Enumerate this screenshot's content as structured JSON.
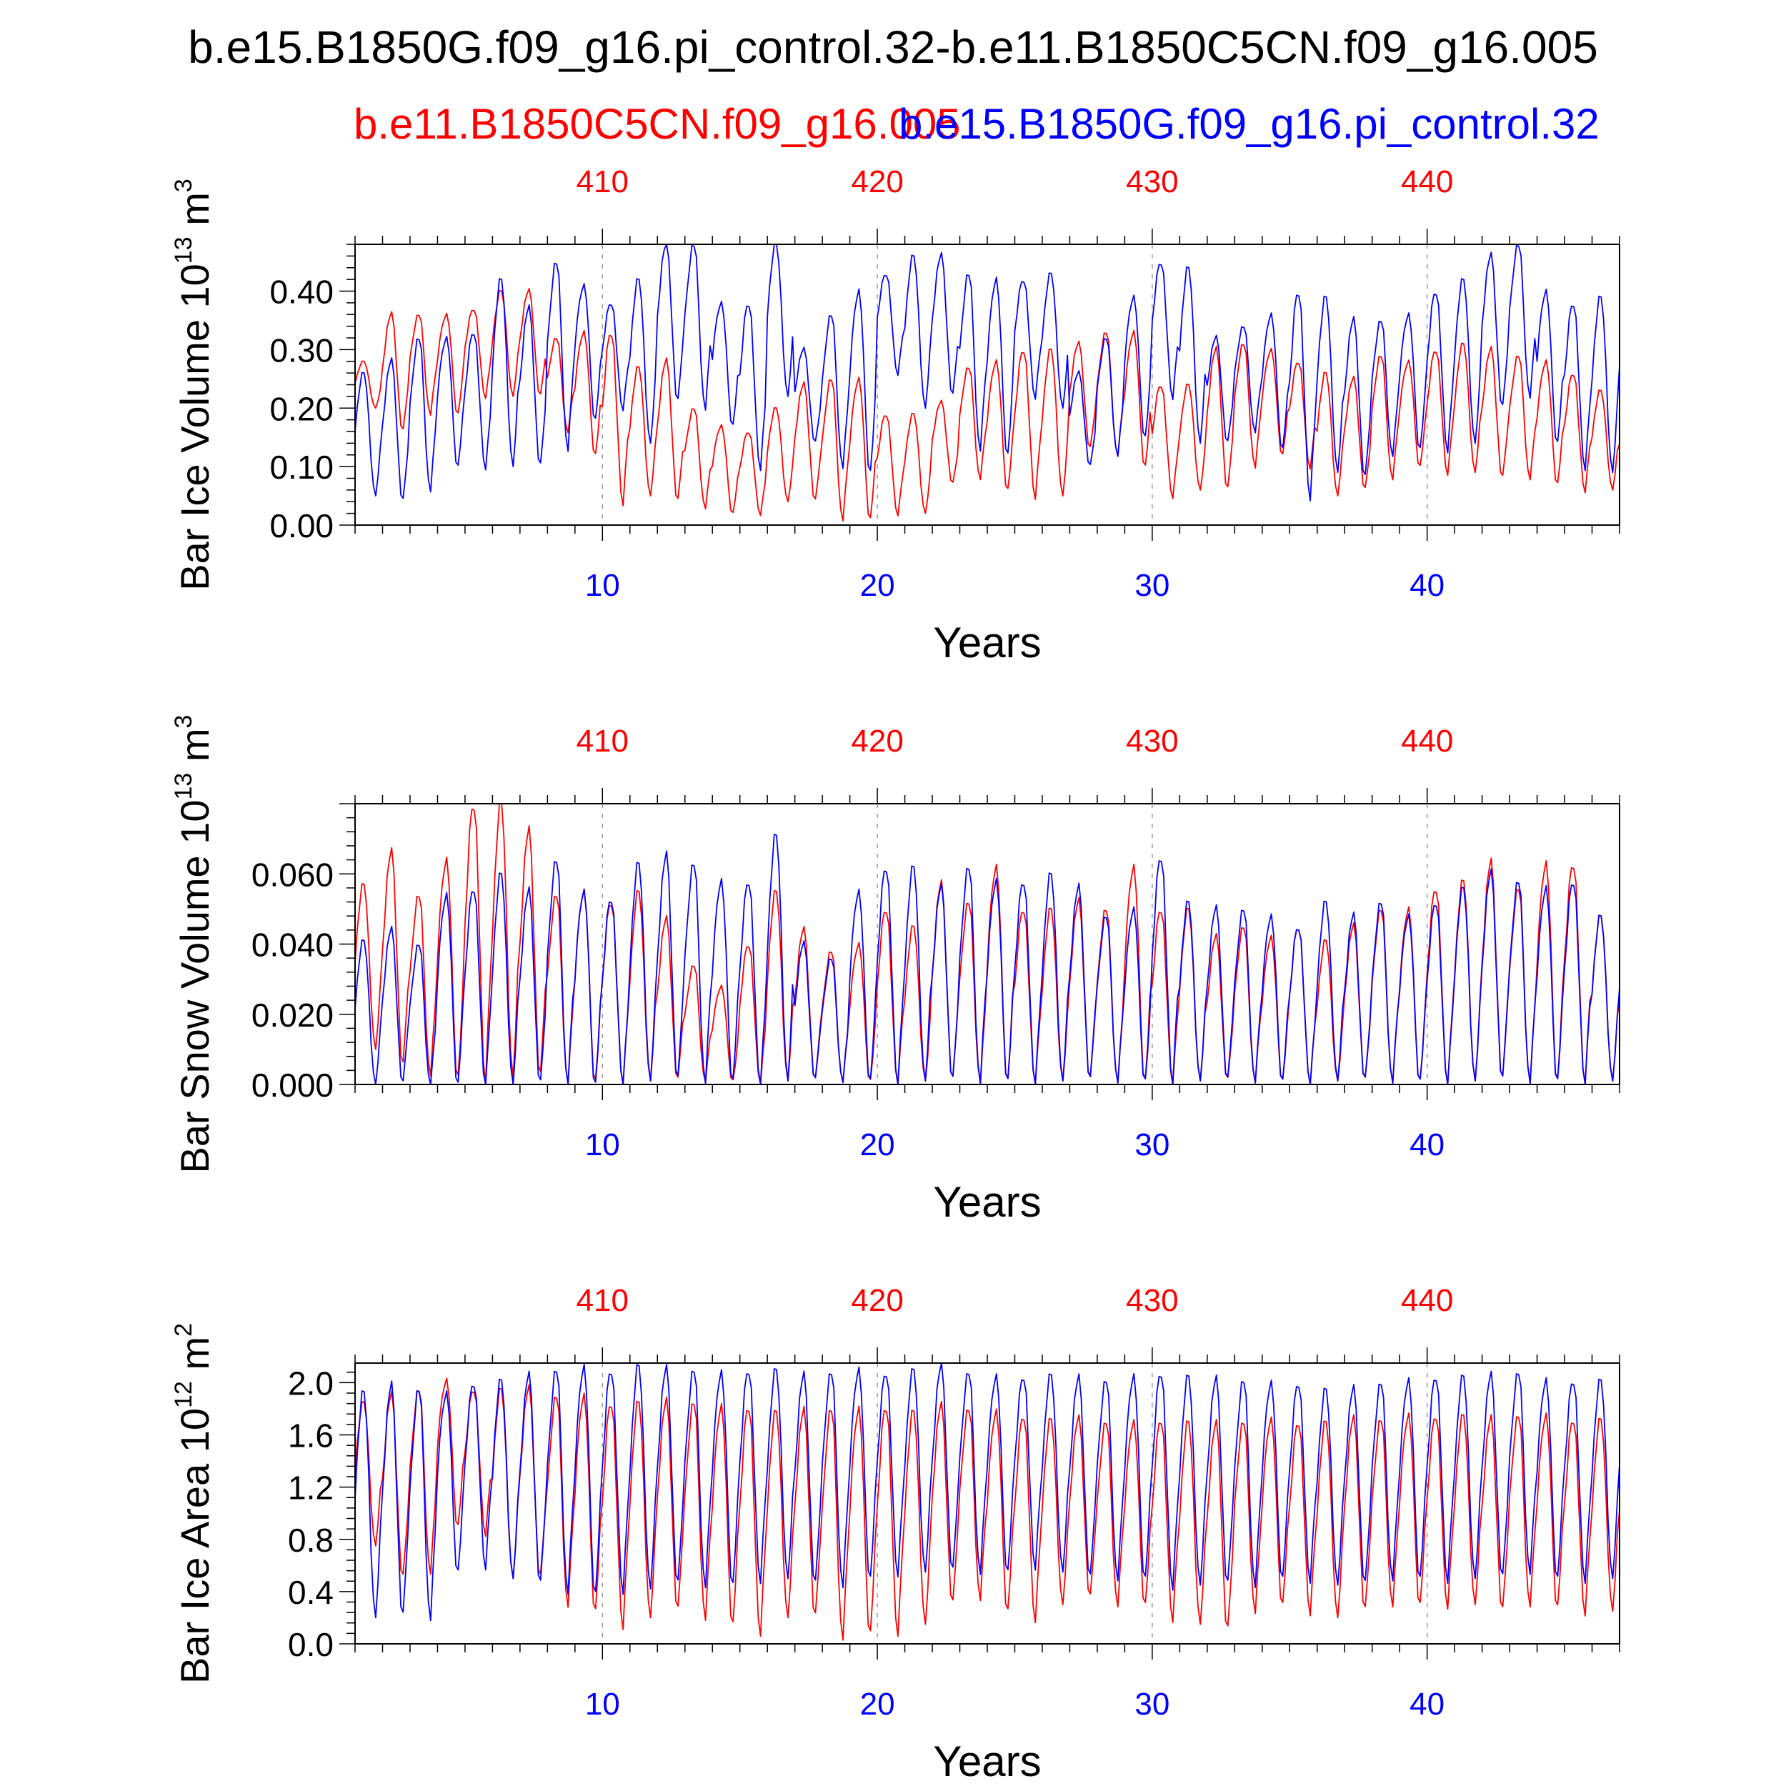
{
  "title": "b.e15.B1850G.f09_g16.pi_control.32-b.e11.B1850C5CN.f09_g16.005",
  "legend": {
    "red_label": "b.e11.B1850C5CN.f09_g16.005",
    "blue_label": "b.e15.B1850G.f09_g16.pi_control.32"
  },
  "colors": {
    "red": "#ff0000",
    "blue": "#0000ff",
    "axis": "#000000",
    "grid": "#999999"
  },
  "chart_data": [
    {
      "type": "line",
      "title": "",
      "ylabel": "Bar Ice Volume 10",
      "ylabel_exp": "13",
      "ylabel_unit": " m",
      "ylabel_unit_exp": "3",
      "xlabel": "Years",
      "xlim": [
        1,
        47
      ],
      "ylim": [
        0,
        0.48
      ],
      "yticks": [
        0.0,
        0.1,
        0.2,
        0.3,
        0.4
      ],
      "ytick_labels": [
        "0.00",
        "0.10",
        "0.20",
        "0.30",
        "0.40"
      ],
      "x_bottom_ticks": [
        10,
        20,
        30,
        40
      ],
      "x_bottom_labels": [
        "10",
        "20",
        "30",
        "40"
      ],
      "x_top_labels": [
        "410",
        "420",
        "430",
        "440"
      ],
      "series": [
        {
          "name": "b.e11.B1850C5CN.f09_g16.005",
          "color": "red",
          "annual_max": [
            0.28,
            0.36,
            0.36,
            0.36,
            0.37,
            0.4,
            0.4,
            0.32,
            0.33,
            0.33,
            0.27,
            0.28,
            0.2,
            0.17,
            0.16,
            0.2,
            0.24,
            0.25,
            0.25,
            0.19,
            0.19,
            0.21,
            0.27,
            0.28,
            0.3,
            0.3,
            0.31,
            0.33,
            0.33,
            0.24,
            0.24,
            0.3,
            0.31,
            0.3,
            0.28,
            0.26,
            0.25,
            0.29,
            0.28,
            0.3,
            0.31,
            0.3,
            0.29,
            0.28,
            0.26,
            0.23,
            0.22
          ],
          "annual_min": [
            0.2,
            0.16,
            0.19,
            0.19,
            0.22,
            0.22,
            0.22,
            0.16,
            0.12,
            0.04,
            0.05,
            0.04,
            0.03,
            0.02,
            0.02,
            0.04,
            0.04,
            0.01,
            0.01,
            0.02,
            0.02,
            0.07,
            0.08,
            0.06,
            0.05,
            0.05,
            0.13,
            0.12,
            0.1,
            0.05,
            0.06,
            0.06,
            0.1,
            0.12,
            0.1,
            0.05,
            0.06,
            0.08,
            0.1,
            0.09,
            0.09,
            0.08,
            0.08,
            0.07,
            0.06,
            0.06,
            0.04
          ]
        },
        {
          "name": "b.e15.B1850G.f09_g16.pi_control.32",
          "color": "blue",
          "annual_max": [
            0.26,
            0.28,
            0.32,
            0.32,
            0.33,
            0.42,
            0.37,
            0.45,
            0.41,
            0.38,
            0.42,
            0.48,
            0.48,
            0.38,
            0.38,
            0.48,
            0.3,
            0.36,
            0.4,
            0.43,
            0.46,
            0.46,
            0.43,
            0.42,
            0.42,
            0.43,
            0.26,
            0.32,
            0.39,
            0.45,
            0.44,
            0.32,
            0.34,
            0.36,
            0.4,
            0.39,
            0.35,
            0.35,
            0.36,
            0.4,
            0.42,
            0.46,
            0.48,
            0.4,
            0.38,
            0.39,
            0.39
          ],
          "annual_min": [
            0.05,
            0.04,
            0.06,
            0.1,
            0.1,
            0.1,
            0.1,
            0.13,
            0.18,
            0.2,
            0.14,
            0.21,
            0.2,
            0.17,
            0.1,
            0.22,
            0.14,
            0.1,
            0.09,
            0.26,
            0.2,
            0.22,
            0.13,
            0.12,
            0.22,
            0.2,
            0.1,
            0.12,
            0.15,
            0.22,
            0.14,
            0.14,
            0.16,
            0.13,
            0.05,
            0.09,
            0.08,
            0.12,
            0.13,
            0.13,
            0.14,
            0.2,
            0.22,
            0.14,
            0.1,
            0.09,
            0.13
          ]
        }
      ]
    },
    {
      "type": "line",
      "title": "",
      "ylabel": "Bar Snow Volume 10",
      "ylabel_exp": "13",
      "ylabel_unit": " m",
      "ylabel_unit_exp": "3",
      "xlabel": "Years",
      "xlim": [
        1,
        47
      ],
      "ylim": [
        0,
        0.08
      ],
      "yticks": [
        0.0,
        0.02,
        0.04,
        0.06
      ],
      "ytick_labels": [
        "0.000",
        "0.020",
        "0.040",
        "0.060"
      ],
      "x_bottom_ticks": [
        10,
        20,
        30,
        40
      ],
      "x_bottom_labels": [
        "10",
        "20",
        "30",
        "40"
      ],
      "x_top_labels": [
        "410",
        "420",
        "430",
        "440"
      ],
      "series": [
        {
          "name": "b.e11.B1850C5CN.f09_g16.005",
          "color": "red",
          "annual_max": [
            0.057,
            0.066,
            0.054,
            0.064,
            0.08,
            0.08,
            0.072,
            0.054,
            0.055,
            0.052,
            0.055,
            0.047,
            0.034,
            0.028,
            0.04,
            0.055,
            0.044,
            0.038,
            0.04,
            0.05,
            0.045,
            0.057,
            0.052,
            0.062,
            0.05,
            0.05,
            0.052,
            0.05,
            0.062,
            0.05,
            0.05,
            0.042,
            0.045,
            0.042,
            0.045,
            0.041,
            0.045,
            0.05,
            0.05,
            0.056,
            0.058,
            0.063,
            0.056,
            0.063,
            0.063,
            0.048,
            0.042
          ],
          "annual_min": [
            0.01,
            0.005,
            0.003,
            0.002,
            0.002,
            0.002,
            0.002,
            0.001,
            0.001,
            0.001,
            0.001,
            0.001,
            0.001,
            0.001,
            0.001,
            0.001,
            0.001,
            0.001,
            0.001,
            0.001,
            0.001,
            0.001,
            0.001,
            0.001,
            0.001,
            0.001,
            0.001,
            0.001,
            0.001,
            0.001,
            0.001,
            0.001,
            0.001,
            0.001,
            0.001,
            0.001,
            0.001,
            0.001,
            0.001,
            0.001,
            0.001,
            0.001,
            0.001,
            0.001,
            0.001,
            0.001,
            0.001
          ]
        },
        {
          "name": "b.e15.B1850G.f09_g16.pi_control.32",
          "color": "blue",
          "annual_max": [
            0.041,
            0.044,
            0.04,
            0.054,
            0.056,
            0.06,
            0.055,
            0.064,
            0.055,
            0.053,
            0.063,
            0.065,
            0.063,
            0.058,
            0.058,
            0.071,
            0.04,
            0.036,
            0.055,
            0.062,
            0.062,
            0.056,
            0.062,
            0.058,
            0.058,
            0.06,
            0.056,
            0.048,
            0.05,
            0.065,
            0.052,
            0.05,
            0.05,
            0.048,
            0.045,
            0.052,
            0.048,
            0.052,
            0.048,
            0.052,
            0.056,
            0.06,
            0.058,
            0.056,
            0.058,
            0.048,
            0.049
          ],
          "annual_min": [
            0.0,
            0.0,
            0.0,
            0.0,
            0.0,
            0.0,
            0.0,
            0.0,
            0.0,
            0.001,
            0.001,
            0.001,
            0.001,
            0.001,
            0.001,
            0.001,
            0.001,
            0.001,
            0.001,
            0.001,
            0.001,
            0.001,
            0.001,
            0.001,
            0.001,
            0.001,
            0.001,
            0.001,
            0.001,
            0.001,
            0.001,
            0.001,
            0.001,
            0.001,
            0.001,
            0.001,
            0.001,
            0.001,
            0.001,
            0.001,
            0.001,
            0.001,
            0.001,
            0.001,
            0.001,
            0.001,
            0.001
          ]
        }
      ]
    },
    {
      "type": "line",
      "title": "",
      "ylabel": "Bar Ice Area 10",
      "ylabel_exp": "12",
      "ylabel_unit": " m",
      "ylabel_unit_exp": "2",
      "xlabel": "Years",
      "xlim": [
        1,
        47
      ],
      "ylim": [
        0,
        2.15
      ],
      "yticks": [
        0.0,
        0.4,
        0.8,
        1.2,
        1.6,
        2.0
      ],
      "ytick_labels": [
        "0.0",
        "0.4",
        "0.8",
        "1.2",
        "1.6",
        "2.0"
      ],
      "x_bottom_ticks": [
        10,
        20,
        30,
        40
      ],
      "x_bottom_labels": [
        "10",
        "20",
        "30",
        "40"
      ],
      "x_top_labels": [
        "410",
        "420",
        "430",
        "440"
      ],
      "series": [
        {
          "name": "b.e11.B1850C5CN.f09_g16.005",
          "color": "red",
          "annual_max": [
            1.85,
            1.9,
            1.95,
            2.02,
            1.95,
            1.95,
            1.95,
            1.9,
            1.9,
            1.85,
            1.85,
            1.85,
            1.85,
            1.82,
            1.82,
            1.78,
            1.78,
            1.8,
            1.8,
            1.82,
            1.78,
            1.82,
            1.8,
            1.78,
            1.75,
            1.72,
            1.72,
            1.7,
            1.7,
            1.72,
            1.7,
            1.68,
            1.7,
            1.72,
            1.7,
            1.7,
            1.72,
            1.72,
            1.75,
            1.75,
            1.75,
            1.72,
            1.75,
            1.75,
            1.72,
            1.72,
            1.7
          ],
          "annual_min": [
            0.75,
            0.5,
            0.55,
            0.9,
            0.85,
            0.5,
            0.5,
            0.3,
            0.25,
            0.15,
            0.2,
            0.25,
            0.2,
            0.15,
            0.1,
            0.2,
            0.2,
            0.05,
            0.08,
            0.1,
            0.15,
            0.3,
            0.35,
            0.25,
            0.2,
            0.3,
            0.35,
            0.3,
            0.3,
            0.2,
            0.15,
            0.1,
            0.25,
            0.3,
            0.25,
            0.2,
            0.25,
            0.3,
            0.3,
            0.3,
            0.3,
            0.25,
            0.3,
            0.28,
            0.25,
            0.25,
            0.2
          ]
        },
        {
          "name": "b.e15.B1850G.f09_g16.pi_control.32",
          "color": "blue",
          "annual_max": [
            1.93,
            1.97,
            1.95,
            1.92,
            2.0,
            2.02,
            2.05,
            2.1,
            2.12,
            2.1,
            2.13,
            2.1,
            2.1,
            2.08,
            2.1,
            2.1,
            2.05,
            2.08,
            2.1,
            2.08,
            2.1,
            2.12,
            2.08,
            2.05,
            2.05,
            2.06,
            2.03,
            2.02,
            2.05,
            2.08,
            2.05,
            2.02,
            2.02,
            2.0,
            2.0,
            1.95,
            1.95,
            2.0,
            2.02,
            2.05,
            2.05,
            2.05,
            2.08,
            2.02,
            2.02,
            2.02,
            2.05
          ],
          "annual_min": [
            0.2,
            0.2,
            0.2,
            0.55,
            0.6,
            0.5,
            0.45,
            0.4,
            0.38,
            0.42,
            0.42,
            0.45,
            0.45,
            0.45,
            0.5,
            0.5,
            0.45,
            0.45,
            0.5,
            0.55,
            0.55,
            0.55,
            0.55,
            0.55,
            0.6,
            0.55,
            0.5,
            0.5,
            0.5,
            0.45,
            0.45,
            0.45,
            0.45,
            0.5,
            0.5,
            0.45,
            0.45,
            0.5,
            0.5,
            0.5,
            0.5,
            0.5,
            0.55,
            0.5,
            0.5,
            0.5,
            0.55
          ]
        }
      ]
    }
  ]
}
